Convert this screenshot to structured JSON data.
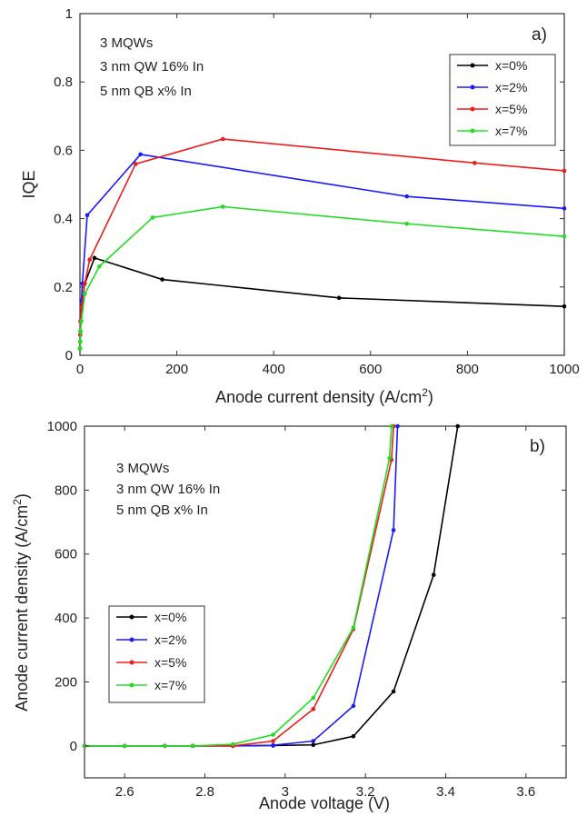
{
  "chart_data": [
    {
      "type": "line",
      "panel_label": "a)",
      "xlabel_prefix": "Anode current density (A/cm",
      "xlabel_sup": "2",
      "xlabel_suffix": ")",
      "ylabel": "IQE",
      "xlim": [
        0,
        1000
      ],
      "ylim": [
        0,
        1
      ],
      "xticks": [
        "0",
        "200",
        "400",
        "600",
        "800",
        "1000"
      ],
      "yticks": [
        "0",
        "0.2",
        "0.4",
        "0.6",
        "0.8",
        "1"
      ],
      "xtick_values": [
        0,
        200,
        400,
        600,
        800,
        1000
      ],
      "ytick_values": [
        0,
        0.2,
        0.4,
        0.6,
        0.8,
        1
      ],
      "annotations": [
        "3 MQWs",
        "3 nm QW 16% In",
        "5 nm QB  x% In"
      ],
      "legend_position": "top-right",
      "series": [
        {
          "name": "x=0%",
          "color": "#000000",
          "x": [
            0,
            0.5,
            1,
            2,
            5,
            10,
            30,
            170,
            535,
            1000
          ],
          "y": [
            0.02,
            0.04,
            0.07,
            0.1,
            0.16,
            0.21,
            0.285,
            0.222,
            0.168,
            0.143
          ]
        },
        {
          "name": "x=2%",
          "color": "#1a1aff",
          "x": [
            0,
            0.5,
            1,
            3,
            5,
            15,
            125,
            675,
            1000
          ],
          "y": [
            0.02,
            0.06,
            0.1,
            0.16,
            0.21,
            0.41,
            0.588,
            0.465,
            0.43
          ]
        },
        {
          "name": "x=5%",
          "color": "#ee1c1c",
          "x": [
            0,
            0.5,
            1,
            3,
            10,
            20,
            115,
            295,
            815,
            1000
          ],
          "y": [
            0.02,
            0.06,
            0.1,
            0.14,
            0.21,
            0.28,
            0.56,
            0.633,
            0.563,
            0.54
          ]
        },
        {
          "name": "x=7%",
          "color": "#22dd22",
          "x": [
            0,
            0.5,
            1,
            3,
            10,
            40,
            150,
            295,
            675,
            1000
          ],
          "y": [
            0.02,
            0.04,
            0.07,
            0.1,
            0.18,
            0.26,
            0.403,
            0.435,
            0.385,
            0.348
          ]
        }
      ]
    },
    {
      "type": "line",
      "panel_label": "b)",
      "xlabel": "Anode voltage (V)",
      "ylabel_prefix": "Anode current density (A/cm",
      "ylabel_sup": "2",
      "ylabel_suffix": ")",
      "xlim": [
        2.5,
        3.7
      ],
      "ylim": [
        -100,
        1000
      ],
      "xticks": [
        "2.6",
        "2.8",
        "3",
        "3.2",
        "3.4",
        "3.6"
      ],
      "yticks": [
        "0",
        "200",
        "400",
        "600",
        "800",
        "1000"
      ],
      "xtick_values": [
        2.6,
        2.8,
        3.0,
        3.2,
        3.4,
        3.6
      ],
      "ytick_values": [
        0,
        200,
        400,
        600,
        800,
        1000
      ],
      "annotations": [
        "3 MQWs",
        "3 nm QW 16% In",
        "5 nm QB  x% In"
      ],
      "legend_position": "bottom-left",
      "series": [
        {
          "name": "x=0%",
          "color": "#000000",
          "x": [
            2.5,
            2.6,
            2.7,
            2.77,
            2.87,
            2.97,
            3.07,
            3.17,
            3.27,
            3.37,
            3.43
          ],
          "y": [
            0,
            0,
            0,
            0,
            0,
            1,
            3,
            30,
            170,
            535,
            1000
          ]
        },
        {
          "name": "x=2%",
          "color": "#1a1aff",
          "x": [
            2.5,
            2.6,
            2.7,
            2.77,
            2.87,
            2.97,
            3.07,
            3.17,
            3.27,
            3.28
          ],
          "y": [
            0,
            0,
            0,
            0,
            0,
            2,
            15,
            125,
            675,
            1000
          ]
        },
        {
          "name": "x=5%",
          "color": "#ee1c1c",
          "x": [
            2.5,
            2.6,
            2.7,
            2.77,
            2.87,
            2.97,
            3.07,
            3.17,
            3.265,
            3.27
          ],
          "y": [
            0,
            0,
            0,
            0,
            0,
            15,
            115,
            365,
            895,
            1000
          ]
        },
        {
          "name": "x=7%",
          "color": "#22dd22",
          "x": [
            2.5,
            2.6,
            2.7,
            2.77,
            2.87,
            2.97,
            3.07,
            3.17,
            3.26,
            3.265
          ],
          "y": [
            0,
            0,
            0,
            0,
            5,
            35,
            150,
            370,
            900,
            1000
          ]
        }
      ]
    }
  ]
}
